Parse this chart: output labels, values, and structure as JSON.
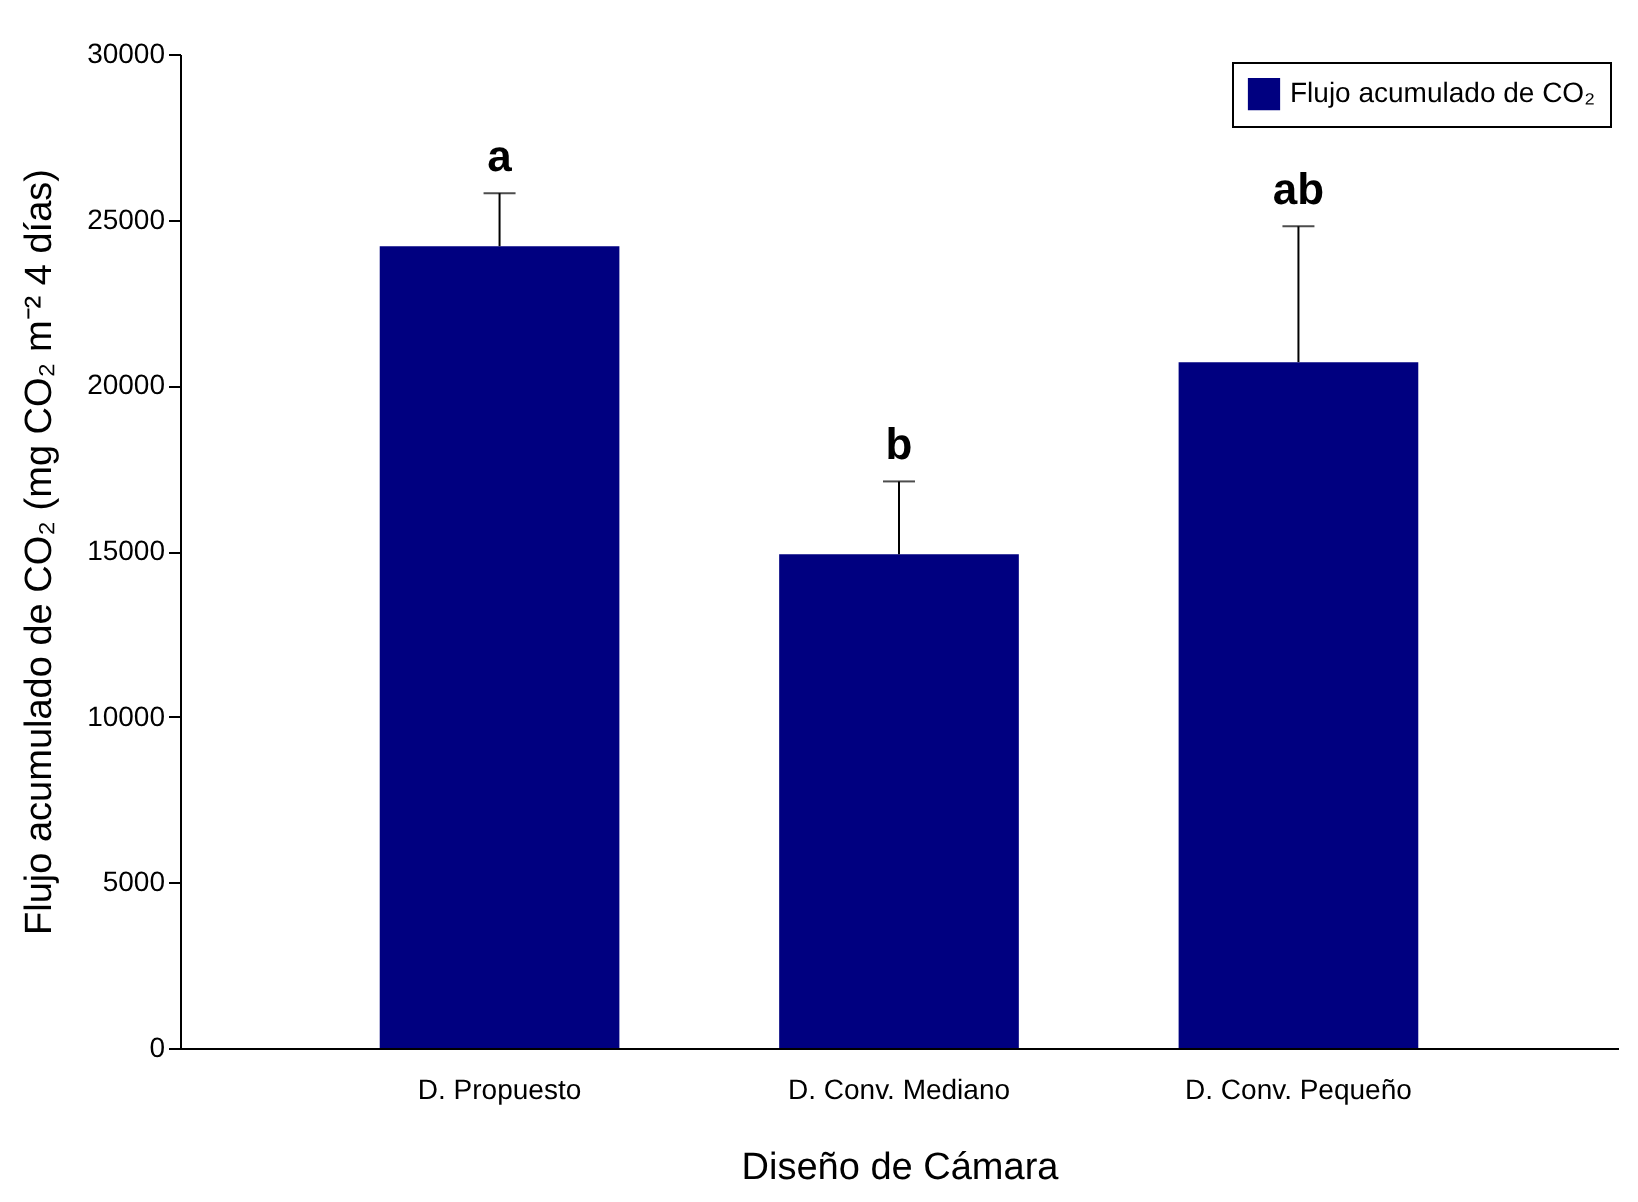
{
  "chart_data": {
    "type": "bar",
    "xlabel": "Diseño de Cámara",
    "ylabel": "Flujo acumulado de CO₂ (mg CO₂ m⁻² 4 días)",
    "categories": [
      "D. Propuesto",
      "D. Conv. Mediano",
      "D. Conv. Pequeño"
    ],
    "series": [
      {
        "name": "Flujo acumulado de CO₂",
        "color": "#000080",
        "values": [
          24200,
          14900,
          20700
        ],
        "errors": [
          [
            24200,
            25800
          ],
          [
            14900,
            17100
          ],
          [
            20700,
            24800
          ]
        ]
      }
    ],
    "ylim": [
      0,
      30000
    ],
    "yticks": [
      0,
      5000,
      10000,
      15000,
      20000,
      25000,
      30000
    ],
    "legend": "top right",
    "annotations": [
      {
        "text": "a",
        "x": "D. Propuesto",
        "y": 25800
      },
      {
        "text": "b",
        "x": "D. Conv. Mediano",
        "y": 17100
      },
      {
        "text": "ab",
        "x": "D. Conv. Pequeño",
        "y": 24800
      }
    ]
  }
}
